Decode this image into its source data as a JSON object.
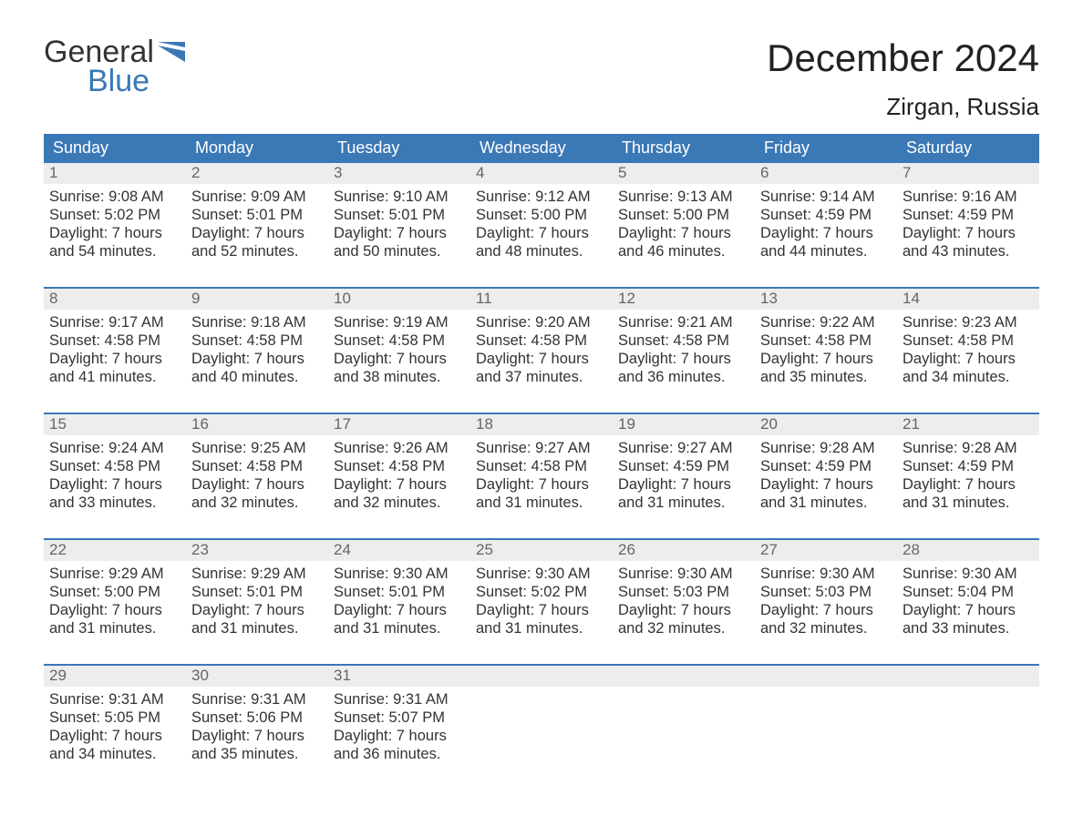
{
  "logo": {
    "word1": "General",
    "word2": "Blue"
  },
  "title": "December 2024",
  "location": "Zirgan, Russia",
  "header_bg": "#3a78b6",
  "header_fg": "#ffffff",
  "daynum_bg": "#ededed",
  "daynum_fg": "#666666",
  "body_bg": "#ffffff",
  "text_color": "#333333",
  "accent": "#3a78b6",
  "title_fontsize": 42,
  "location_fontsize": 26,
  "header_fontsize": 18,
  "cell_fontsize": 16.5,
  "day_headers": [
    "Sunday",
    "Monday",
    "Tuesday",
    "Wednesday",
    "Thursday",
    "Friday",
    "Saturday"
  ],
  "weeks": [
    [
      {
        "n": "1",
        "sr": "9:08 AM",
        "ss": "5:02 PM",
        "dh": "7",
        "dm": "54"
      },
      {
        "n": "2",
        "sr": "9:09 AM",
        "ss": "5:01 PM",
        "dh": "7",
        "dm": "52"
      },
      {
        "n": "3",
        "sr": "9:10 AM",
        "ss": "5:01 PM",
        "dh": "7",
        "dm": "50"
      },
      {
        "n": "4",
        "sr": "9:12 AM",
        "ss": "5:00 PM",
        "dh": "7",
        "dm": "48"
      },
      {
        "n": "5",
        "sr": "9:13 AM",
        "ss": "5:00 PM",
        "dh": "7",
        "dm": "46"
      },
      {
        "n": "6",
        "sr": "9:14 AM",
        "ss": "4:59 PM",
        "dh": "7",
        "dm": "44"
      },
      {
        "n": "7",
        "sr": "9:16 AM",
        "ss": "4:59 PM",
        "dh": "7",
        "dm": "43"
      }
    ],
    [
      {
        "n": "8",
        "sr": "9:17 AM",
        "ss": "4:58 PM",
        "dh": "7",
        "dm": "41"
      },
      {
        "n": "9",
        "sr": "9:18 AM",
        "ss": "4:58 PM",
        "dh": "7",
        "dm": "40"
      },
      {
        "n": "10",
        "sr": "9:19 AM",
        "ss": "4:58 PM",
        "dh": "7",
        "dm": "38"
      },
      {
        "n": "11",
        "sr": "9:20 AM",
        "ss": "4:58 PM",
        "dh": "7",
        "dm": "37"
      },
      {
        "n": "12",
        "sr": "9:21 AM",
        "ss": "4:58 PM",
        "dh": "7",
        "dm": "36"
      },
      {
        "n": "13",
        "sr": "9:22 AM",
        "ss": "4:58 PM",
        "dh": "7",
        "dm": "35"
      },
      {
        "n": "14",
        "sr": "9:23 AM",
        "ss": "4:58 PM",
        "dh": "7",
        "dm": "34"
      }
    ],
    [
      {
        "n": "15",
        "sr": "9:24 AM",
        "ss": "4:58 PM",
        "dh": "7",
        "dm": "33"
      },
      {
        "n": "16",
        "sr": "9:25 AM",
        "ss": "4:58 PM",
        "dh": "7",
        "dm": "32"
      },
      {
        "n": "17",
        "sr": "9:26 AM",
        "ss": "4:58 PM",
        "dh": "7",
        "dm": "32"
      },
      {
        "n": "18",
        "sr": "9:27 AM",
        "ss": "4:58 PM",
        "dh": "7",
        "dm": "31"
      },
      {
        "n": "19",
        "sr": "9:27 AM",
        "ss": "4:59 PM",
        "dh": "7",
        "dm": "31"
      },
      {
        "n": "20",
        "sr": "9:28 AM",
        "ss": "4:59 PM",
        "dh": "7",
        "dm": "31"
      },
      {
        "n": "21",
        "sr": "9:28 AM",
        "ss": "4:59 PM",
        "dh": "7",
        "dm": "31"
      }
    ],
    [
      {
        "n": "22",
        "sr": "9:29 AM",
        "ss": "5:00 PM",
        "dh": "7",
        "dm": "31"
      },
      {
        "n": "23",
        "sr": "9:29 AM",
        "ss": "5:01 PM",
        "dh": "7",
        "dm": "31"
      },
      {
        "n": "24",
        "sr": "9:30 AM",
        "ss": "5:01 PM",
        "dh": "7",
        "dm": "31"
      },
      {
        "n": "25",
        "sr": "9:30 AM",
        "ss": "5:02 PM",
        "dh": "7",
        "dm": "31"
      },
      {
        "n": "26",
        "sr": "9:30 AM",
        "ss": "5:03 PM",
        "dh": "7",
        "dm": "32"
      },
      {
        "n": "27",
        "sr": "9:30 AM",
        "ss": "5:03 PM",
        "dh": "7",
        "dm": "32"
      },
      {
        "n": "28",
        "sr": "9:30 AM",
        "ss": "5:04 PM",
        "dh": "7",
        "dm": "33"
      }
    ],
    [
      {
        "n": "29",
        "sr": "9:31 AM",
        "ss": "5:05 PM",
        "dh": "7",
        "dm": "34"
      },
      {
        "n": "30",
        "sr": "9:31 AM",
        "ss": "5:06 PM",
        "dh": "7",
        "dm": "35"
      },
      {
        "n": "31",
        "sr": "9:31 AM",
        "ss": "5:07 PM",
        "dh": "7",
        "dm": "36"
      },
      {
        "empty": true
      },
      {
        "empty": true
      },
      {
        "empty": true
      },
      {
        "empty": true
      }
    ]
  ],
  "labels": {
    "sunrise_prefix": "Sunrise: ",
    "sunset_prefix": "Sunset: ",
    "daylight_prefix": "Daylight: ",
    "hours_word": " hours",
    "and_word": "and ",
    "minutes_word": " minutes."
  }
}
